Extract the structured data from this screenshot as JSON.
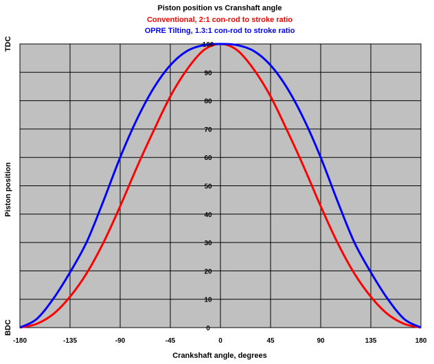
{
  "chart_data": {
    "type": "line",
    "title": "Piston position vs Cranshaft angle",
    "subtitles": [
      {
        "text": "Conventional, 2:1 con-rod to stroke ratio",
        "color": "#ff0000"
      },
      {
        "text": "OPRE Tilting, 1.3:1 con-rod to stroke ratio",
        "color": "#0000ff"
      }
    ],
    "xlabel": "Crankshaft angle, degrees",
    "ylabel": "Piston position",
    "y_end_labels": {
      "top": "TDC",
      "bottom": "BDC"
    },
    "xlim": [
      -180,
      180
    ],
    "ylim": [
      0,
      100
    ],
    "x_ticks": [
      "-180",
      "-135",
      "-90",
      "-45",
      "0",
      "45",
      "90",
      "135",
      "180"
    ],
    "y_ticks": [
      "0",
      "10",
      "20",
      "30",
      "40",
      "50",
      "60",
      "70",
      "80",
      "90",
      "100"
    ],
    "grid": true,
    "plot_background": "#c0c0c0",
    "series": [
      {
        "color": "#ff0000",
        "x": [
          -180,
          -165,
          -150,
          -135,
          -120,
          -105,
          -90,
          -75,
          -60,
          -45,
          -30,
          -15,
          0,
          15,
          30,
          45,
          60,
          75,
          90,
          105,
          120,
          135,
          150,
          165,
          180
        ],
        "values": [
          0,
          1.3,
          4.8,
          10.9,
          19.2,
          30,
          42.8,
          56.5,
          69.4,
          81.5,
          91,
          97.8,
          100,
          97.8,
          91,
          81.5,
          69.4,
          56.5,
          42.8,
          30,
          19.2,
          10.9,
          4.8,
          1.3,
          0
        ]
      },
      {
        "color": "#0000ff",
        "x": [
          -180,
          -165,
          -150,
          -135,
          -120,
          -105,
          -90,
          -75,
          -60,
          -45,
          -30,
          -15,
          0,
          15,
          30,
          45,
          60,
          75,
          90,
          105,
          120,
          135,
          150,
          165,
          180
        ],
        "values": [
          0,
          3,
          10.2,
          19.5,
          30.2,
          44.7,
          60,
          73.4,
          84.4,
          92.5,
          97.5,
          99.6,
          100,
          99.6,
          97.5,
          92.5,
          84.4,
          73.4,
          60,
          44.7,
          30.2,
          19.5,
          10.2,
          3,
          0
        ]
      }
    ]
  }
}
